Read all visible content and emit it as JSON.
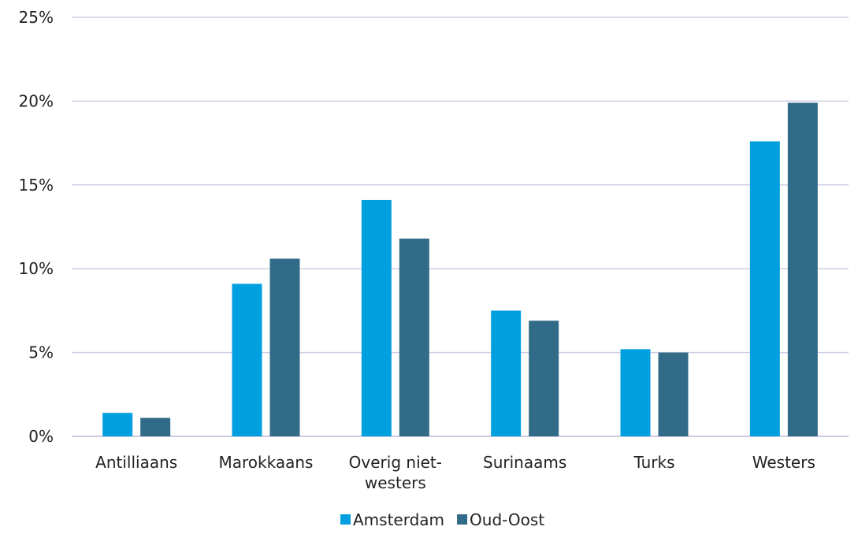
{
  "chart_data": {
    "type": "bar",
    "categories": [
      "Antilliaans",
      "Marokkaans",
      "Overig niet-westers",
      "Surinaams",
      "Turks",
      "Westers"
    ],
    "category_lines": [
      [
        "Antilliaans"
      ],
      [
        "Marokkaans"
      ],
      [
        "Overig niet-",
        "westers"
      ],
      [
        "Surinaams"
      ],
      [
        "Turks"
      ],
      [
        "Westers"
      ]
    ],
    "series": [
      {
        "name": "Amsterdam",
        "color": "#009fdf",
        "values": [
          1.4,
          9.1,
          14.1,
          7.5,
          5.2,
          17.6
        ]
      },
      {
        "name": "Oud-Oost",
        "color": "#326b87",
        "values": [
          1.1,
          10.6,
          11.8,
          6.9,
          5.0,
          19.9
        ]
      }
    ],
    "ylim": [
      0,
      25
    ],
    "yticks": [
      0,
      5,
      10,
      15,
      20,
      25
    ],
    "ytick_labels": [
      "0%",
      "5%",
      "10%",
      "15%",
      "20%",
      "25%"
    ],
    "grid": true,
    "legend_position": "bottom",
    "title": "",
    "xlabel": "",
    "ylabel": ""
  }
}
